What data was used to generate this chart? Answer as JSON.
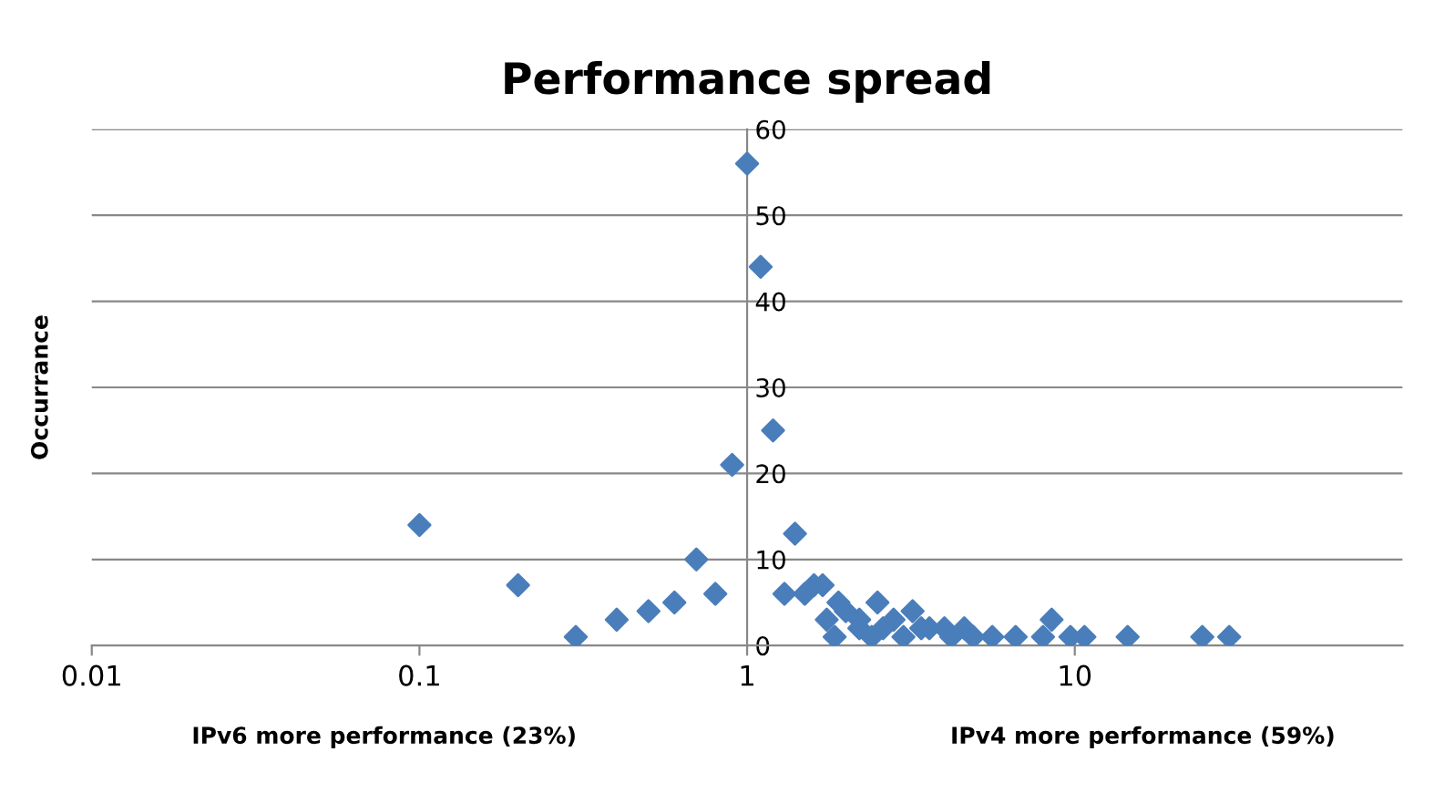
{
  "chart_data": {
    "type": "scatter",
    "title": "Performance spread",
    "ylabel": "Occurrance",
    "annotations": [
      "IPv6 more performance (23%)",
      "IPv4 more performance (59%)"
    ],
    "log": "x",
    "xlim": [
      0.01,
      100
    ],
    "xticks": [
      0.01,
      0.1,
      1,
      10
    ],
    "ylim": [
      0,
      60
    ],
    "yticks": [
      0,
      10,
      20,
      30,
      40,
      50,
      60
    ],
    "grid": "y",
    "marker": "diamond",
    "legend": false,
    "series": [
      {
        "color": "#4a7ebb",
        "x": [
          0.1,
          0.2,
          0.3,
          0.4,
          0.5,
          0.6,
          0.7,
          0.8,
          0.9,
          1,
          1.1,
          1.2,
          1.4,
          1.3,
          1.5,
          1.6,
          1.7,
          1.75,
          1.85,
          1.9,
          2.0,
          2.2,
          2.2,
          2.4,
          2.5,
          2.6,
          2.8,
          3.0,
          3.2,
          3.4,
          3.6,
          4.0,
          4.2,
          4.6,
          4.9,
          5.6,
          6.6,
          8.0,
          8.5,
          9.7,
          10.7,
          14.5,
          24.5,
          29.6
        ],
        "values": [
          14,
          7,
          1,
          3,
          4,
          5,
          10,
          6,
          21,
          56,
          44,
          25,
          13,
          6,
          6,
          7,
          7,
          3,
          1,
          5,
          4,
          3,
          2,
          1,
          5,
          2,
          3,
          1,
          4,
          2,
          2,
          2,
          1,
          2,
          1,
          1,
          1,
          1,
          3,
          1,
          1,
          1,
          1,
          1
        ]
      }
    ]
  }
}
